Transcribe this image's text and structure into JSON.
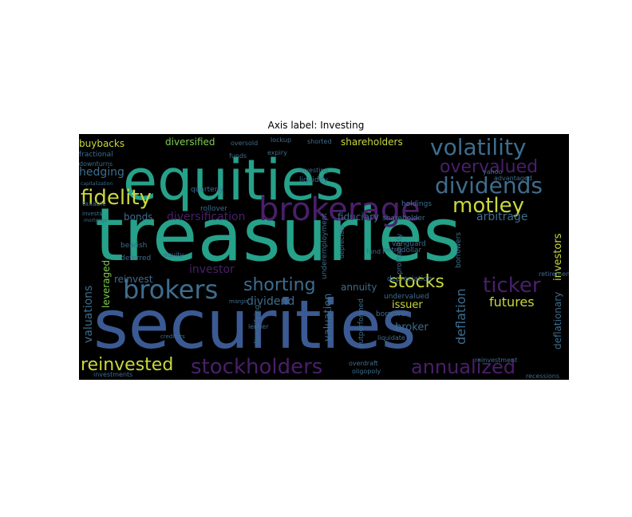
{
  "title": "Axis label: Investing",
  "background": "#000000",
  "palette": {
    "teal": "#26A18A",
    "blue": "#3B5A93",
    "purple": "#4A1F6B",
    "yellow": "#C9D83A",
    "green": "#7FCF4F",
    "slate": "#3E6D8E"
  },
  "words": [
    {
      "text": "treasuries",
      "color": "teal"
    },
    {
      "text": "securities",
      "color": "blue"
    },
    {
      "text": "equities",
      "color": "teal"
    },
    {
      "text": "brokerage",
      "color": "purple"
    },
    {
      "text": "volatility",
      "color": "slate"
    },
    {
      "text": "dividends",
      "color": "slate"
    },
    {
      "text": "fidelity",
      "color": "yellow"
    },
    {
      "text": "brokers",
      "color": "slate"
    },
    {
      "text": "motley",
      "color": "yellow"
    },
    {
      "text": "overvalued",
      "color": "purple"
    },
    {
      "text": "stockholders",
      "color": "purple"
    },
    {
      "text": "annualized",
      "color": "purple"
    },
    {
      "text": "reinvested",
      "color": "yellow"
    },
    {
      "text": "shorting",
      "color": "slate"
    },
    {
      "text": "stocks",
      "color": "yellow"
    },
    {
      "text": "ticker",
      "color": "purple"
    },
    {
      "text": "diversification",
      "color": "purple"
    },
    {
      "text": "valuations",
      "color": "slate"
    },
    {
      "text": "futures",
      "color": "yellow"
    },
    {
      "text": "deflation",
      "color": "slate"
    },
    {
      "text": "shareholders",
      "color": "yellow"
    },
    {
      "text": "buybacks",
      "color": "yellow"
    },
    {
      "text": "hedging",
      "color": "slate"
    },
    {
      "text": "diversified",
      "color": "green"
    },
    {
      "text": "fiduciary",
      "color": "slate"
    },
    {
      "text": "arbitrage",
      "color": "slate"
    },
    {
      "text": "investors",
      "color": "yellow"
    },
    {
      "text": "dividend",
      "color": "slate"
    },
    {
      "text": "annuity",
      "color": "slate"
    },
    {
      "text": "reinvest",
      "color": "slate"
    },
    {
      "text": "investor",
      "color": "purple"
    },
    {
      "text": "bonds",
      "color": "slate"
    },
    {
      "text": "leveraged",
      "color": "green"
    },
    {
      "text": "valuation",
      "color": "slate"
    },
    {
      "text": "broker",
      "color": "slate"
    },
    {
      "text": "issuer",
      "color": "yellow"
    },
    {
      "text": "deflationary",
      "color": "slate"
    },
    {
      "text": "fractional",
      "color": "slate"
    },
    {
      "text": "quarterly",
      "color": "slate"
    },
    {
      "text": "rollover",
      "color": "slate"
    },
    {
      "text": "holdings",
      "color": "slate"
    },
    {
      "text": "shareholder",
      "color": "slate"
    },
    {
      "text": "depreciation",
      "color": "slate"
    },
    {
      "text": "undervalued",
      "color": "slate"
    },
    {
      "text": "borrower",
      "color": "slate"
    },
    {
      "text": "liquidity",
      "color": "slate"
    },
    {
      "text": "investing",
      "color": "slate"
    },
    {
      "text": "shorted",
      "color": "slate"
    },
    {
      "text": "lockup",
      "color": "slate"
    },
    {
      "text": "expiry",
      "color": "slate"
    },
    {
      "text": "funds",
      "color": "slate"
    },
    {
      "text": "yahoo",
      "color": "slate"
    },
    {
      "text": "vanguard",
      "color": "slate"
    },
    {
      "text": "petrodollar",
      "color": "slate"
    },
    {
      "text": "profitability",
      "color": "slate"
    },
    {
      "text": "retirement",
      "color": "slate"
    },
    {
      "text": "recessions",
      "color": "slate"
    },
    {
      "text": "investments",
      "color": "slate"
    },
    {
      "text": "oligopoly",
      "color": "slate"
    },
    {
      "text": "overdraft",
      "color": "slate"
    },
    {
      "text": "reinvestment",
      "color": "slate"
    },
    {
      "text": "liquidate",
      "color": "slate"
    },
    {
      "text": "downturns",
      "color": "slate"
    },
    {
      "text": "taxable",
      "color": "slate"
    },
    {
      "text": "invests",
      "color": "slate"
    },
    {
      "text": "bearish",
      "color": "slate"
    },
    {
      "text": "deferred",
      "color": "slate"
    },
    {
      "text": "equity",
      "color": "slate"
    },
    {
      "text": "lender",
      "color": "slate"
    },
    {
      "text": "fund",
      "color": "slate"
    },
    {
      "text": "oversold",
      "color": "slate"
    },
    {
      "text": "underemployment",
      "color": "slate"
    },
    {
      "text": "outperformed",
      "color": "slate"
    },
    {
      "text": "diversifying",
      "color": "slate"
    },
    {
      "text": "advantaged",
      "color": "slate"
    },
    {
      "text": "borrowers",
      "color": "slate"
    },
    {
      "text": "depreciate",
      "color": "slate"
    },
    {
      "text": "margin",
      "color": "slate"
    },
    {
      "text": "mortgage",
      "color": "slate"
    },
    {
      "text": "creditors",
      "color": "slate"
    },
    {
      "text": "capitalization",
      "color": "slate"
    }
  ]
}
